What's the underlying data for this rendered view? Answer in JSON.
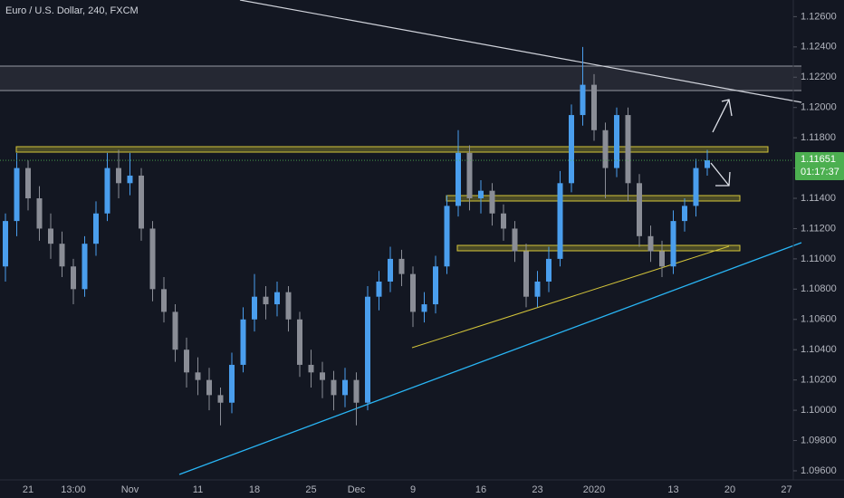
{
  "chart_data": {
    "type": "candlestick",
    "title": "Euro / U.S. Dollar, 240, FXCM",
    "categories": [
      null,
      null,
      "21",
      null,
      null,
      null,
      "13:00",
      null,
      null,
      null,
      null,
      "Nov",
      null,
      null,
      null,
      null,
      null,
      "11",
      null,
      null,
      null,
      null,
      "18",
      null,
      null,
      null,
      null,
      "25",
      null,
      null,
      null,
      "Dec",
      null,
      null,
      null,
      null,
      "9",
      null,
      null,
      null,
      null,
      null,
      "16",
      null,
      null,
      null,
      null,
      "23",
      null,
      null,
      null,
      null,
      "2020",
      null,
      null,
      null,
      null,
      null,
      null,
      "13",
      null,
      null,
      null,
      null,
      "20",
      null,
      null,
      null,
      null,
      "27"
    ],
    "candles": [
      [
        1.1095,
        1.113,
        1.1085,
        1.1125
      ],
      [
        1.1125,
        1.117,
        1.1115,
        1.116
      ],
      [
        1.116,
        1.1165,
        1.1132,
        1.114
      ],
      [
        1.114,
        1.1148,
        1.1112,
        1.112
      ],
      [
        1.112,
        1.113,
        1.11,
        1.111
      ],
      [
        1.111,
        1.1118,
        1.1088,
        1.1095
      ],
      [
        1.1095,
        1.11,
        1.107,
        1.108
      ],
      [
        1.108,
        1.1115,
        1.1075,
        1.111
      ],
      [
        1.111,
        1.1138,
        1.1102,
        1.113
      ],
      [
        1.113,
        1.117,
        1.1125,
        1.116
      ],
      [
        1.116,
        1.1172,
        1.114,
        1.115
      ],
      [
        1.115,
        1.117,
        1.1142,
        1.1155
      ],
      [
        1.1155,
        1.116,
        1.1112,
        1.112
      ],
      [
        1.112,
        1.1125,
        1.1072,
        1.108
      ],
      [
        1.108,
        1.1088,
        1.1058,
        1.1065
      ],
      [
        1.1065,
        1.107,
        1.1032,
        1.104
      ],
      [
        1.104,
        1.1048,
        1.1015,
        1.1025
      ],
      [
        1.1025,
        1.1035,
        1.101,
        1.102
      ],
      [
        1.102,
        1.1028,
        1.1,
        1.101
      ],
      [
        1.101,
        1.1015,
        1.099,
        1.1005
      ],
      [
        1.1005,
        1.1038,
        1.0998,
        1.103
      ],
      [
        1.103,
        1.1068,
        1.1025,
        1.106
      ],
      [
        1.106,
        1.109,
        1.1052,
        1.1075
      ],
      [
        1.1075,
        1.1082,
        1.106,
        1.107
      ],
      [
        1.107,
        1.1085,
        1.1062,
        1.1078
      ],
      [
        1.1078,
        1.1082,
        1.1052,
        1.106
      ],
      [
        1.106,
        1.1065,
        1.1022,
        1.103
      ],
      [
        1.103,
        1.104,
        1.1015,
        1.1025
      ],
      [
        1.1025,
        1.1032,
        1.1008,
        1.102
      ],
      [
        1.102,
        1.1026,
        1.1,
        1.101
      ],
      [
        1.101,
        1.1028,
        1.1002,
        1.102
      ],
      [
        1.102,
        1.1025,
        1.099,
        1.1005
      ],
      [
        1.1005,
        1.1082,
        1.1,
        1.1075
      ],
      [
        1.1075,
        1.1092,
        1.1066,
        1.1085
      ],
      [
        1.1085,
        1.1108,
        1.1078,
        1.11
      ],
      [
        1.11,
        1.1106,
        1.1082,
        1.109
      ],
      [
        1.109,
        1.1095,
        1.1055,
        1.1065
      ],
      [
        1.1065,
        1.1078,
        1.1058,
        1.107
      ],
      [
        1.107,
        1.1102,
        1.1064,
        1.1095
      ],
      [
        1.1095,
        1.1142,
        1.109,
        1.1135
      ],
      [
        1.1135,
        1.1185,
        1.1128,
        1.117
      ],
      [
        1.117,
        1.1175,
        1.1132,
        1.114
      ],
      [
        1.114,
        1.1152,
        1.113,
        1.1145
      ],
      [
        1.1145,
        1.115,
        1.1122,
        1.113
      ],
      [
        1.113,
        1.1136,
        1.1112,
        1.112
      ],
      [
        1.112,
        1.1125,
        1.1098,
        1.1105
      ],
      [
        1.1105,
        1.111,
        1.1068,
        1.1075
      ],
      [
        1.1075,
        1.1092,
        1.1068,
        1.1085
      ],
      [
        1.1085,
        1.1108,
        1.1078,
        1.11
      ],
      [
        1.11,
        1.1158,
        1.1095,
        1.115
      ],
      [
        1.115,
        1.1202,
        1.1144,
        1.1195
      ],
      [
        1.1195,
        1.124,
        1.1188,
        1.1215
      ],
      [
        1.1215,
        1.1222,
        1.1178,
        1.1185
      ],
      [
        1.1185,
        1.119,
        1.114,
        1.116
      ],
      [
        1.116,
        1.12,
        1.1154,
        1.1195
      ],
      [
        1.1195,
        1.12,
        1.1138,
        1.115
      ],
      [
        1.115,
        1.1156,
        1.1108,
        1.1115
      ],
      [
        1.1115,
        1.1122,
        1.1098,
        1.1105
      ],
      [
        1.1105,
        1.1112,
        1.1088,
        1.1095
      ],
      [
        1.1095,
        1.1132,
        1.109,
        1.1125
      ],
      [
        1.1125,
        1.114,
        1.1118,
        1.1135
      ],
      [
        1.1135,
        1.1166,
        1.1128,
        1.116
      ],
      [
        1.116,
        1.1172,
        1.1155,
        1.11651
      ],
      null,
      null,
      null,
      null,
      null,
      null,
      null
    ],
    "up_color": "#4a9eed",
    "down_color": "#8a8d96",
    "ylim": [
      1.0954,
      1.1271
    ],
    "yticks": [
      {
        "value": 1.126,
        "label": "1.12600"
      },
      {
        "value": 1.124,
        "label": "1.12400"
      },
      {
        "value": 1.122,
        "label": "1.12200"
      },
      {
        "value": 1.12,
        "label": "1.12000"
      },
      {
        "value": 1.118,
        "label": "1.11800"
      },
      {
        "value": 1.116,
        "label": "1.11600"
      },
      {
        "value": 1.114,
        "label": "1.11400"
      },
      {
        "value": 1.112,
        "label": "1.11200"
      },
      {
        "value": 1.11,
        "label": "1.11000"
      },
      {
        "value": 1.108,
        "label": "1.10800"
      },
      {
        "value": 1.106,
        "label": "1.10600"
      },
      {
        "value": 1.104,
        "label": "1.10400"
      },
      {
        "value": 1.102,
        "label": "1.10200"
      },
      {
        "value": 1.1,
        "label": "1.10000"
      },
      {
        "value": 1.098,
        "label": "1.09800"
      },
      {
        "value": 1.096,
        "label": "1.09600"
      }
    ],
    "last_price": 1.11651,
    "countdown": "01:17:37",
    "last_color": "#4caf50",
    "grid": false
  }
}
